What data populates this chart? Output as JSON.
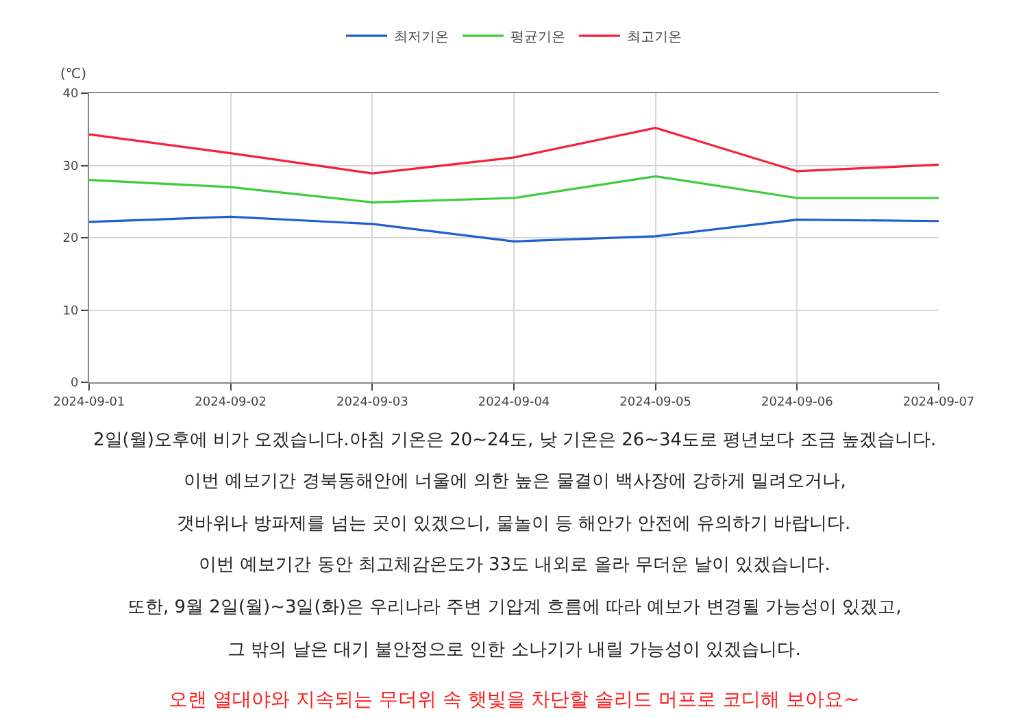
{
  "chart_data": {
    "type": "line",
    "ylabel": "(℃)",
    "categories": [
      "2024-09-01",
      "2024-09-02",
      "2024-09-03",
      "2024-09-04",
      "2024-09-05",
      "2024-09-06",
      "2024-09-07"
    ],
    "series": [
      {
        "name": "최저기온",
        "color": "#1f5fcf",
        "values": [
          22.2,
          22.9,
          21.9,
          19.5,
          20.2,
          22.5,
          22.3
        ]
      },
      {
        "name": "평균기온",
        "color": "#3ccc3c",
        "values": [
          28.0,
          27.0,
          24.9,
          25.5,
          28.5,
          25.5,
          25.5
        ]
      },
      {
        "name": "최고기온",
        "color": "#f5213a",
        "values": [
          34.3,
          31.7,
          28.9,
          31.1,
          35.2,
          29.2,
          30.1
        ]
      }
    ],
    "ylim": [
      0,
      40
    ],
    "yticks": [
      0,
      10,
      20,
      30,
      40
    ],
    "grid": true,
    "legend": "top",
    "marker": "none",
    "line_style": "solid",
    "annotations": [
      "2일(월)오후에 비가 오겠습니다.아침 기온은 20~24도, 낮 기온은 26~34도로 평년보다 조금 높겠습니다.",
      "이번 예보기간 경북동해안에 너울에 의한 높은 물결이 백사장에 강하게 밀려오거나,",
      "갯바위나 방파제를 넘는 곳이 있겠으니, 물놀이 등 해안가 안전에 유의하기 바랍니다.",
      "이번 예보기간 동안 최고체감온도가 33도 내외로 올라 무더운 날이 있겠습니다.",
      "또한, 9월 2일(월)~3일(화)은 우리나라 주변 기압계 흐름에 따라 예보가 변경될 가능성이 있겠고,",
      "그 밖의 날은 대기 불안정으로 인한 소나기가 내릴 가능성이 있겠습니다.",
      "오랜 열대야와 지속되는 무더위 속 햇빛을 차단할 솔리드 머프로 코디해 보아요~"
    ]
  }
}
